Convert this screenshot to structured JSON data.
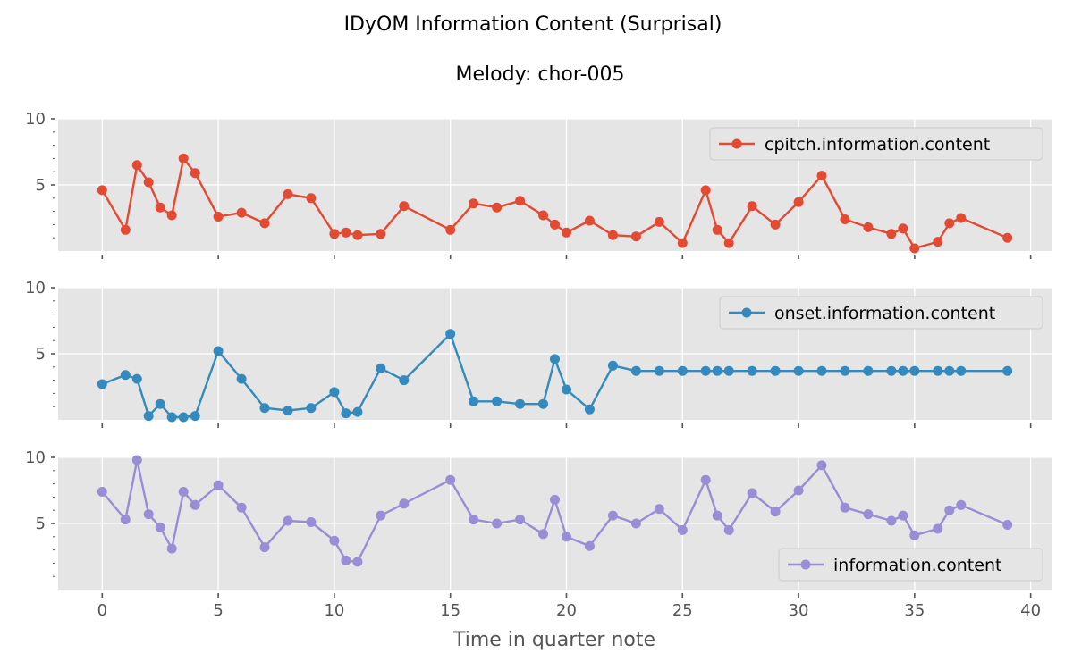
{
  "figure": {
    "title": "IDyOM Information Content (Surprisal)",
    "subtitle": "Melody: chor-005",
    "xlabel": "Time in quarter note",
    "background": "#ffffff",
    "plot_background": "#e5e5e5",
    "grid_color": "#ffffff",
    "tick_color": "#555555"
  },
  "chart_data": [
    {
      "type": "line",
      "legend_position": "top-right",
      "grid": true,
      "xlim": [
        -1.9,
        40.9
      ],
      "ylim": [
        0,
        10
      ],
      "xticks": [
        0,
        5,
        10,
        15,
        20,
        25,
        30,
        35,
        40
      ],
      "yticks": [
        5,
        10
      ],
      "xtick_labels_visible": false,
      "series": [
        {
          "name": "cpitch.information.content",
          "color": "#E24A33",
          "x": [
            0,
            1,
            1.5,
            2,
            2.5,
            3,
            3.5,
            4,
            5,
            6,
            7,
            8,
            9,
            10,
            10.5,
            11,
            12,
            13,
            15,
            16,
            17,
            18,
            19,
            19.5,
            20,
            21,
            22,
            23,
            24,
            25,
            26,
            26.5,
            27,
            28,
            29,
            30,
            31,
            32,
            33,
            34,
            34.5,
            35,
            36,
            36.5,
            37,
            39
          ],
          "values": [
            4.6,
            1.6,
            6.5,
            5.2,
            3.3,
            2.7,
            7.0,
            5.9,
            2.6,
            2.9,
            2.1,
            4.3,
            4.0,
            1.3,
            1.4,
            1.2,
            1.3,
            3.4,
            1.6,
            3.6,
            3.3,
            3.8,
            2.7,
            2.0,
            1.4,
            2.3,
            1.2,
            1.1,
            2.2,
            0.6,
            4.6,
            1.6,
            0.6,
            3.4,
            2.0,
            3.7,
            5.7,
            2.4,
            1.8,
            1.3,
            1.7,
            0.2,
            0.7,
            2.1,
            2.5,
            1.0
          ]
        }
      ]
    },
    {
      "type": "line",
      "legend_position": "top-right",
      "grid": true,
      "xlim": [
        -1.9,
        40.9
      ],
      "ylim": [
        0,
        10
      ],
      "xticks": [
        0,
        5,
        10,
        15,
        20,
        25,
        30,
        35,
        40
      ],
      "yticks": [
        5,
        10
      ],
      "xtick_labels_visible": false,
      "series": [
        {
          "name": "onset.information.content",
          "color": "#348ABD",
          "x": [
            0,
            1,
            1.5,
            2,
            2.5,
            3,
            3.5,
            4,
            5,
            6,
            7,
            8,
            9,
            10,
            10.5,
            11,
            12,
            13,
            15,
            16,
            17,
            18,
            19,
            19.5,
            20,
            21,
            22,
            23,
            24,
            25,
            26,
            26.5,
            27,
            28,
            29,
            30,
            31,
            32,
            33,
            34,
            34.5,
            35,
            36,
            36.5,
            37,
            39
          ],
          "values": [
            2.7,
            3.4,
            3.1,
            0.3,
            1.2,
            0.2,
            0.2,
            0.3,
            5.2,
            3.1,
            0.9,
            0.7,
            0.9,
            2.1,
            0.5,
            0.6,
            3.9,
            3.0,
            6.5,
            1.4,
            1.4,
            1.2,
            1.2,
            4.6,
            2.3,
            0.8,
            4.1,
            3.7,
            3.7,
            3.7,
            3.7,
            3.7,
            3.7,
            3.7,
            3.7,
            3.7,
            3.7,
            3.7,
            3.7,
            3.7,
            3.7,
            3.7,
            3.7,
            3.7,
            3.7,
            3.7
          ]
        }
      ]
    },
    {
      "type": "line",
      "legend_position": "bottom-right",
      "grid": true,
      "xlim": [
        -1.9,
        40.9
      ],
      "ylim": [
        0,
        10
      ],
      "xticks": [
        0,
        5,
        10,
        15,
        20,
        25,
        30,
        35,
        40
      ],
      "yticks": [
        5,
        10
      ],
      "xtick_labels_visible": true,
      "series": [
        {
          "name": "information.content",
          "color": "#988ED5",
          "x": [
            0,
            1,
            1.5,
            2,
            2.5,
            3,
            3.5,
            4,
            5,
            6,
            7,
            8,
            9,
            10,
            10.5,
            11,
            12,
            13,
            15,
            16,
            17,
            18,
            19,
            19.5,
            20,
            21,
            22,
            23,
            24,
            25,
            26,
            26.5,
            27,
            28,
            29,
            30,
            31,
            32,
            33,
            34,
            34.5,
            35,
            36,
            36.5,
            37,
            39
          ],
          "values": [
            7.4,
            5.3,
            9.8,
            5.7,
            4.7,
            3.1,
            7.4,
            6.4,
            7.9,
            6.2,
            3.2,
            5.2,
            5.1,
            3.7,
            2.2,
            2.1,
            5.6,
            6.5,
            8.3,
            5.3,
            5.0,
            5.3,
            4.2,
            6.8,
            4.0,
            3.3,
            5.6,
            5.0,
            6.1,
            4.5,
            8.3,
            5.6,
            4.5,
            7.3,
            5.9,
            7.5,
            9.4,
            6.2,
            5.7,
            5.2,
            5.6,
            4.1,
            4.6,
            6.0,
            6.4,
            4.9
          ]
        }
      ]
    }
  ]
}
